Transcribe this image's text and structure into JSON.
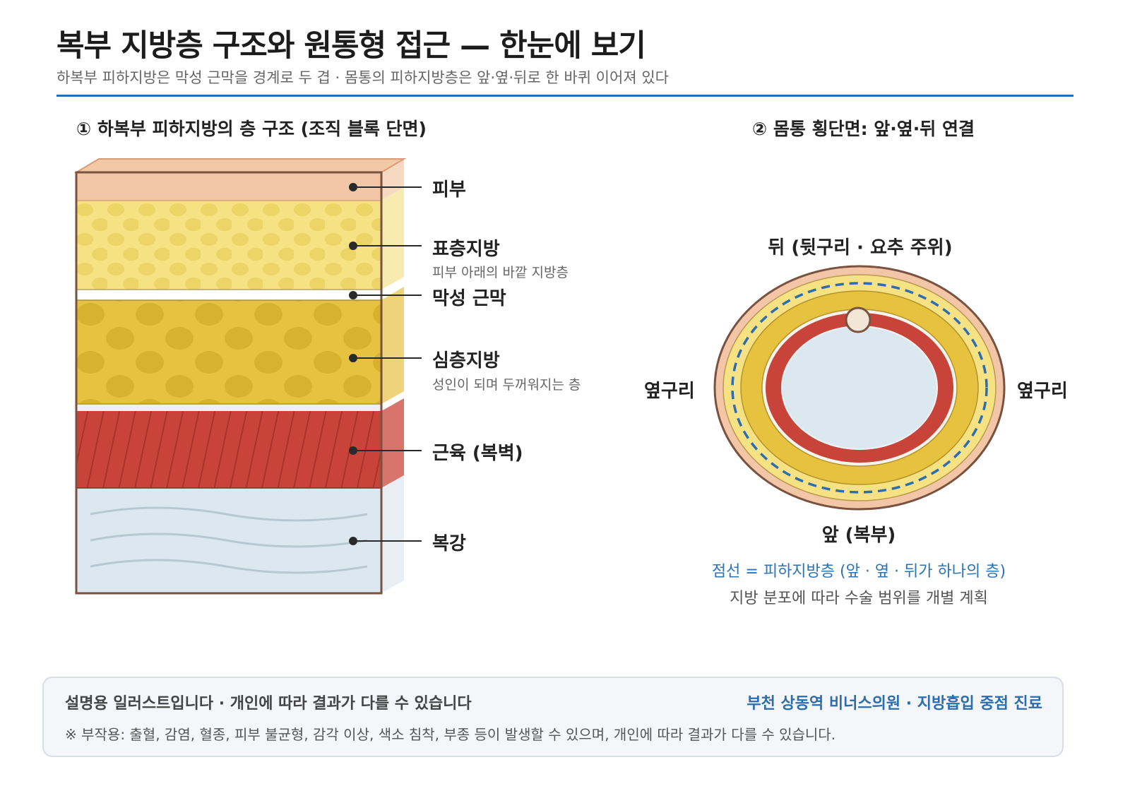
{
  "header": {
    "title": "복부 지방층 구조와 원통형 접근 — 한눈에 보기",
    "subtitle": "하복부 피하지방은 막성 근막을 경계로 두 겹 · 몸통의 피하지방층은 앞·옆·뒤로 한 바퀴 이어져 있다"
  },
  "section1": {
    "title": "① 하복부 피하지방의 층 구조 (조직 블록 단면)",
    "layers": [
      {
        "label": "피부",
        "desc": ""
      },
      {
        "label": "표층지방",
        "desc": "피부 아래의 바깥 지방층"
      },
      {
        "label": "막성 근막",
        "desc": ""
      },
      {
        "label": "심층지방",
        "desc": "성인이 되며 두꺼워지는 층"
      },
      {
        "label": "근육 (복벽)",
        "desc": ""
      },
      {
        "label": "복강",
        "desc": ""
      }
    ]
  },
  "section2": {
    "title": "② 몸통 횡단면: 앞·옆·뒤 연결",
    "top_label": "뒤 (뒷구리 · 요추 주위)",
    "left_label": "옆구리",
    "right_label": "옆구리",
    "bottom_label": "앞 (복부)",
    "note_line1": "점선 = 피하지방층 (앞 · 옆 · 뒤가 하나의 층)",
    "note_line2": "지방 분포에 따라 수술 범위를 개별 계획"
  },
  "footer": {
    "left": "설명용 일러스트입니다 · 개인에 따라 결과가 다를 수 있습니다",
    "right": "부천 상동역 비너스의원 · 지방흡입 중점 진료",
    "note": "※ 부작용: 출혈, 감염, 혈종, 피부 불균형, 감각 이상, 색소 침착, 부종 등이 발생할 수 있으며, 개인에 따라 결과가 다를 수 있습니다."
  },
  "colors": {
    "accent": "#2b6db0",
    "skin": "#f2c6a6",
    "superficial_fat": "#f6e283",
    "deep_fat": "#e6c23f",
    "muscle": "#c8443a",
    "cavity": "#dce8ef"
  }
}
